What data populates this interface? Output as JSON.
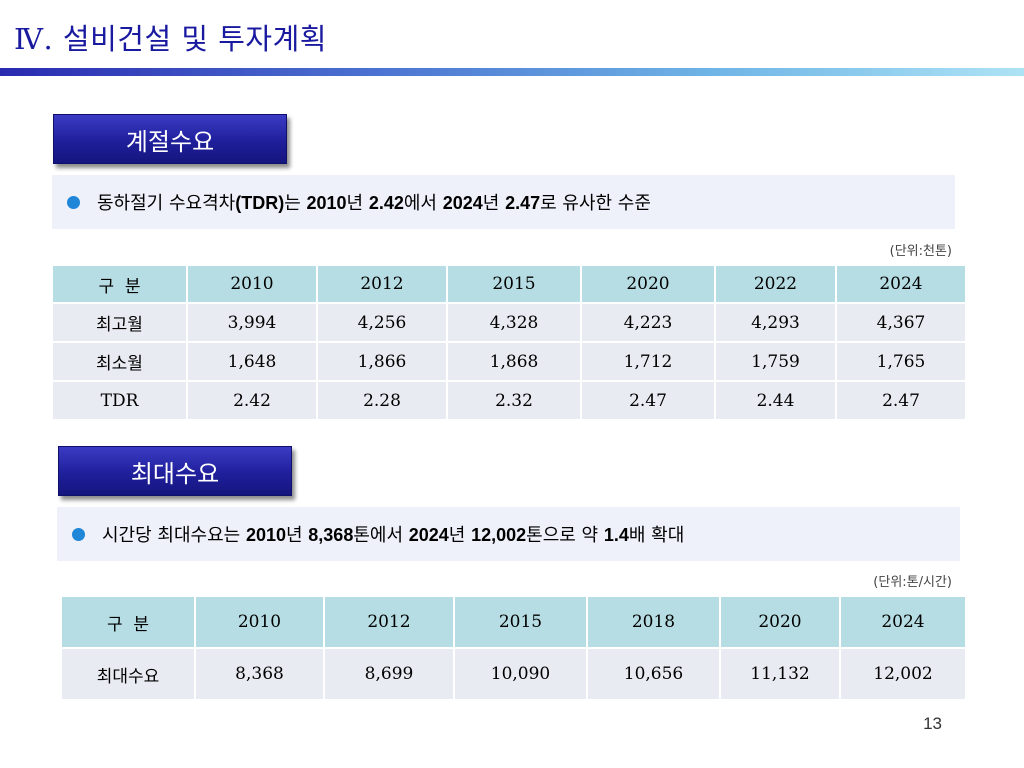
{
  "slide": {
    "title": "Ⅳ. 설비건설 및 투자계획",
    "page_number": "13"
  },
  "section1": {
    "label": "계절수요",
    "summary": {
      "p1": "동하절기 수요격차",
      "p2": "(TDR)",
      "p3": "는 ",
      "p4": "2010",
      "p5": "년 ",
      "p6": "2.42",
      "p7": "에서 ",
      "p8": "2024",
      "p9": "년 ",
      "p10": "2.47",
      "p11": "로 유사한 수준"
    },
    "unit": "(단위:천톤)",
    "table": {
      "headers": [
        "구  분",
        "2010",
        "2012",
        "2015",
        "2020",
        "2022",
        "2024"
      ],
      "rows": [
        [
          "최고월",
          "3,994",
          "4,256",
          "4,328",
          "4,223",
          "4,293",
          "4,367"
        ],
        [
          "최소월",
          "1,648",
          "1,866",
          "1,868",
          "1,712",
          "1,759",
          "1,765"
        ],
        [
          "TDR",
          "2.42",
          "2.28",
          "2.32",
          "2.47",
          "2.44",
          "2.47"
        ]
      ]
    }
  },
  "section2": {
    "label": "최대수요",
    "summary": {
      "p1": "시간당 최대수요는 ",
      "p2": "2010",
      "p3": "년 ",
      "p4": "8,368",
      "p5": "톤에서 ",
      "p6": "2024",
      "p7": "년 ",
      "p8": "12,002",
      "p9": "톤으로 약 ",
      "p10": "1.4",
      "p11": "배  확대"
    },
    "unit": "(단위:톤/시간)",
    "table": {
      "headers": [
        "구  분",
        "2010",
        "2012",
        "2015",
        "2018",
        "2020",
        "2024"
      ],
      "rows": [
        [
          "최대수요",
          "8,368",
          "8,699",
          "10,090",
          "10,656",
          "11,132",
          "12,002"
        ]
      ]
    }
  }
}
